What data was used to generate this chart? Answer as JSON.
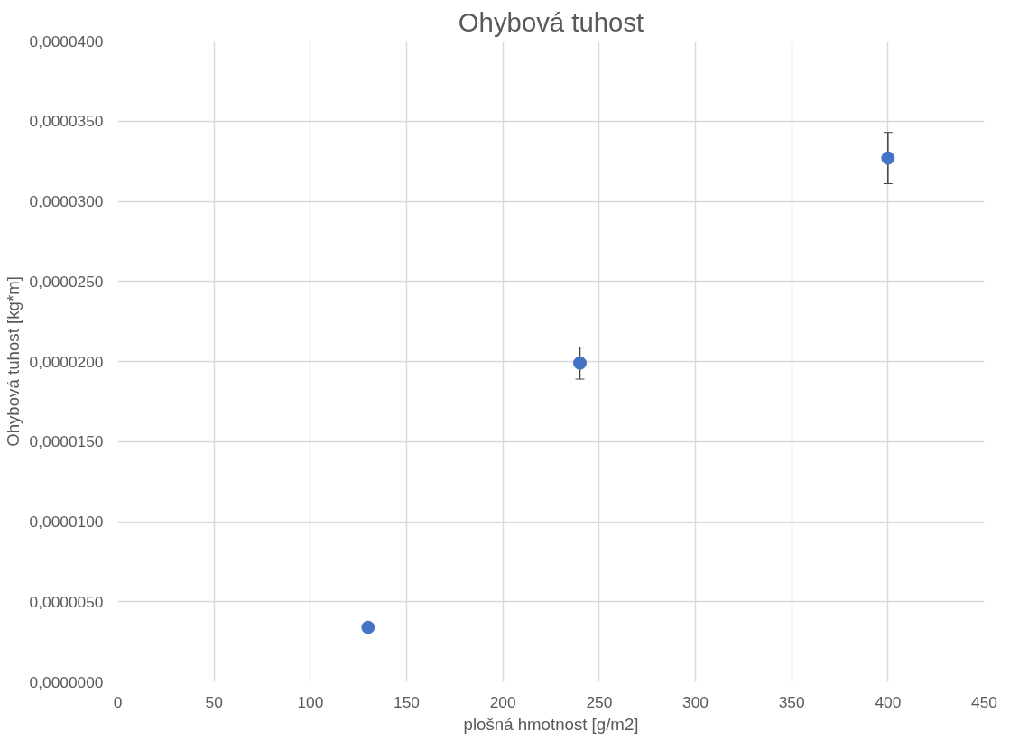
{
  "chart_data": {
    "type": "scatter",
    "title": "Ohybová tuhost",
    "xlabel": "plošná hmotnost [g/m2]",
    "ylabel": "Ohybová tuhost [kg*m]",
    "x": [
      130,
      240,
      400
    ],
    "series": [
      {
        "color": "#4472c4",
        "values": [
          3.4e-06,
          1.99e-05,
          3.27e-05
        ],
        "errors": [
          null,
          1e-06,
          1.6e-06
        ]
      }
    ],
    "xlim": [
      0,
      450
    ],
    "xticks": [
      0,
      50,
      100,
      150,
      200,
      250,
      300,
      350,
      400,
      450
    ],
    "ylim": [
      0,
      4e-05
    ],
    "yticks": [
      {
        "value": 0,
        "label": "0,0000000"
      },
      {
        "value": 5e-06,
        "label": "0,0000050"
      },
      {
        "value": 1e-05,
        "label": "0,0000100"
      },
      {
        "value": 1.5e-05,
        "label": "0,0000150"
      },
      {
        "value": 2e-05,
        "label": "0,0000200"
      },
      {
        "value": 2.5e-05,
        "label": "0,0000250"
      },
      {
        "value": 3e-05,
        "label": "0,0000300"
      },
      {
        "value": 3.5e-05,
        "label": "0,0000350"
      },
      {
        "value": 4e-05,
        "label": "0,0000400"
      }
    ],
    "grid": true,
    "marker": "circle"
  }
}
